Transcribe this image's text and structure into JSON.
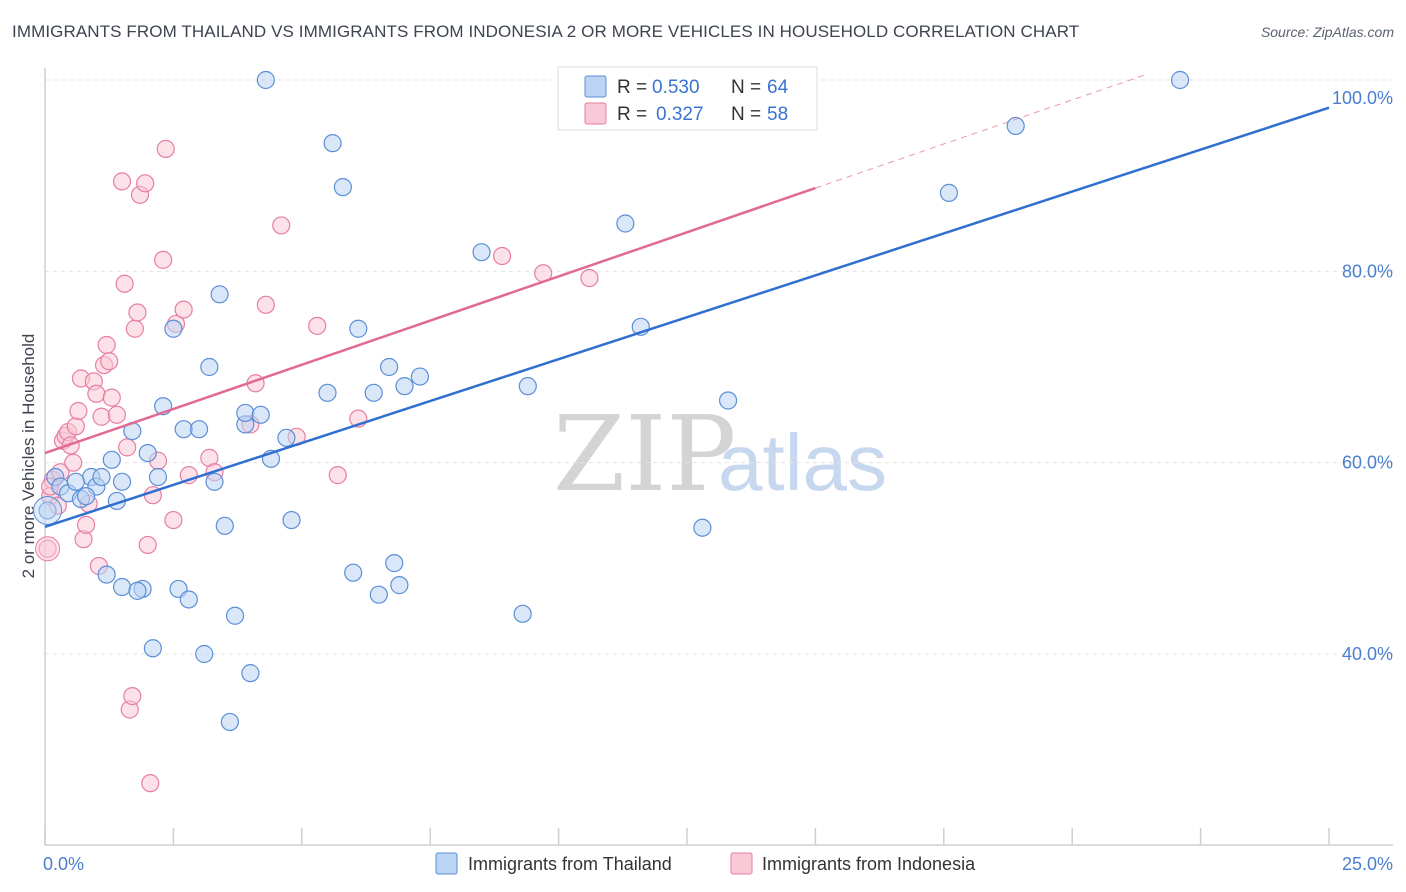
{
  "header": {
    "title": "IMMIGRANTS FROM THAILAND VS IMMIGRANTS FROM INDONESIA 2 OR MORE VEHICLES IN HOUSEHOLD CORRELATION CHART",
    "source": "Source: ZipAtlas.com"
  },
  "legend": {
    "r_label": "R =",
    "n_label": "N =",
    "series1": {
      "r": "0.530",
      "n": "64"
    },
    "series2": {
      "r": "0.327",
      "n": "58"
    }
  },
  "watermark": {
    "zip": "ZIP",
    "atlas": "atlas"
  },
  "colors": {
    "thailand_fill": "#bcd4f4",
    "thailand_stroke": "#5b8fd6",
    "thailand_line": "#2f6fd0",
    "indonesia_fill": "#f9c9d7",
    "indonesia_stroke": "#e77fa0",
    "indonesia_line": "#e06a93",
    "tick_text": "#4a7fd0"
  },
  "chart_data": {
    "type": "scatter",
    "title": "IMMIGRANTS FROM THAILAND VS IMMIGRANTS FROM INDONESIA 2 OR MORE VEHICLES IN HOUSEHOLD CORRELATION CHART",
    "xlabel": "",
    "ylabel": "2 or more Vehicles in Household",
    "xlim": [
      0,
      25
    ],
    "ylim": [
      20,
      102
    ],
    "x_tick_labels": [
      "0.0%",
      "25.0%"
    ],
    "y_ticks": [
      40,
      60,
      80,
      100
    ],
    "y_tick_labels": [
      "40.0%",
      "60.0%",
      "80.0%",
      "100.0%"
    ],
    "grid": true,
    "legend_position": "top-center",
    "series": [
      {
        "name": "Immigrants from Thailand",
        "r": 0.53,
        "n": 64,
        "trend": {
          "x": [
            0,
            25
          ],
          "y": [
            53.3,
            97.1
          ]
        },
        "points": [
          [
            0.05,
            55.0
          ],
          [
            0.2,
            58.5
          ],
          [
            0.3,
            57.5
          ],
          [
            0.45,
            56.8
          ],
          [
            0.7,
            56.2
          ],
          [
            0.9,
            58.5
          ],
          [
            1.0,
            57.5
          ],
          [
            1.1,
            58.5
          ],
          [
            1.3,
            60.3
          ],
          [
            1.4,
            56.0
          ],
          [
            1.5,
            58.0
          ],
          [
            1.7,
            63.3
          ],
          [
            2.0,
            61.0
          ],
          [
            2.2,
            58.5
          ],
          [
            2.3,
            65.9
          ],
          [
            2.5,
            74.0
          ],
          [
            2.7,
            63.5
          ],
          [
            3.0,
            63.5
          ],
          [
            3.2,
            70.0
          ],
          [
            3.3,
            58.0
          ],
          [
            3.4,
            77.6
          ],
          [
            3.5,
            53.4
          ],
          [
            3.9,
            64.0
          ],
          [
            3.9,
            65.2
          ],
          [
            4.2,
            65.0
          ],
          [
            4.4,
            60.4
          ],
          [
            4.7,
            62.6
          ],
          [
            4.8,
            54.0
          ],
          [
            5.5,
            67.3
          ],
          [
            5.6,
            93.4
          ],
          [
            5.8,
            88.8
          ],
          [
            6.0,
            48.5
          ],
          [
            6.1,
            74.0
          ],
          [
            6.4,
            67.3
          ],
          [
            6.5,
            46.2
          ],
          [
            6.7,
            70.0
          ],
          [
            6.8,
            49.5
          ],
          [
            6.9,
            47.2
          ],
          [
            7.0,
            68.0
          ],
          [
            7.3,
            69.0
          ],
          [
            8.5,
            82.0
          ],
          [
            9.3,
            44.2
          ],
          [
            9.4,
            68.0
          ],
          [
            11.3,
            85.0
          ],
          [
            11.6,
            74.2
          ],
          [
            12.8,
            53.2
          ],
          [
            13.3,
            66.5
          ],
          [
            17.6,
            88.2
          ],
          [
            18.9,
            95.2
          ],
          [
            22.1,
            100.0
          ],
          [
            4.3,
            100.0
          ],
          [
            1.5,
            47.0
          ],
          [
            1.2,
            48.3
          ],
          [
            1.9,
            46.8
          ],
          [
            1.8,
            46.6
          ],
          [
            2.1,
            40.6
          ],
          [
            2.6,
            46.8
          ],
          [
            2.8,
            45.7
          ],
          [
            3.1,
            40.0
          ],
          [
            3.7,
            44.0
          ],
          [
            4.0,
            38.0
          ],
          [
            3.6,
            32.9
          ],
          [
            0.8,
            56.5
          ],
          [
            0.6,
            58.0
          ]
        ]
      },
      {
        "name": "Immigrants from Indonesia",
        "r": 0.327,
        "n": 58,
        "trend": {
          "x": [
            0,
            15
          ],
          "y": [
            61.0,
            88.7
          ]
        },
        "trend_dashed": {
          "x": [
            15,
            21.4
          ],
          "y": [
            88.7,
            100.5
          ]
        },
        "points": [
          [
            0.05,
            51.0
          ],
          [
            0.1,
            56.5
          ],
          [
            0.15,
            58.2
          ],
          [
            0.25,
            55.5
          ],
          [
            0.3,
            59.0
          ],
          [
            0.35,
            62.3
          ],
          [
            0.4,
            62.8
          ],
          [
            0.45,
            63.2
          ],
          [
            0.5,
            61.8
          ],
          [
            0.55,
            60.0
          ],
          [
            0.6,
            63.8
          ],
          [
            0.65,
            65.4
          ],
          [
            0.7,
            68.8
          ],
          [
            0.75,
            52.0
          ],
          [
            0.8,
            53.5
          ],
          [
            0.85,
            55.7
          ],
          [
            0.95,
            68.5
          ],
          [
            1.0,
            67.2
          ],
          [
            1.05,
            49.2
          ],
          [
            1.1,
            64.8
          ],
          [
            1.15,
            70.2
          ],
          [
            1.2,
            72.3
          ],
          [
            1.25,
            70.6
          ],
          [
            1.3,
            66.8
          ],
          [
            1.4,
            65.0
          ],
          [
            1.5,
            89.4
          ],
          [
            1.55,
            78.7
          ],
          [
            1.6,
            61.6
          ],
          [
            1.65,
            34.2
          ],
          [
            1.7,
            35.6
          ],
          [
            1.75,
            74.0
          ],
          [
            1.8,
            75.7
          ],
          [
            1.85,
            88.0
          ],
          [
            1.95,
            89.2
          ],
          [
            2.0,
            51.4
          ],
          [
            2.05,
            26.5
          ],
          [
            2.1,
            56.6
          ],
          [
            2.2,
            60.2
          ],
          [
            2.3,
            81.2
          ],
          [
            2.35,
            92.8
          ],
          [
            2.5,
            54.0
          ],
          [
            2.55,
            74.5
          ],
          [
            2.7,
            76.0
          ],
          [
            2.8,
            58.7
          ],
          [
            3.2,
            60.5
          ],
          [
            3.3,
            59.0
          ],
          [
            4.0,
            64.0
          ],
          [
            4.1,
            68.3
          ],
          [
            4.3,
            76.5
          ],
          [
            4.6,
            84.8
          ],
          [
            4.9,
            62.7
          ],
          [
            5.3,
            74.3
          ],
          [
            5.7,
            58.7
          ],
          [
            6.1,
            64.6
          ],
          [
            8.9,
            81.6
          ],
          [
            9.7,
            79.8
          ],
          [
            10.6,
            79.3
          ],
          [
            0.1,
            57.5
          ]
        ]
      }
    ]
  },
  "bottom_legend": {
    "items": [
      {
        "label": "Immigrants from Thailand"
      },
      {
        "label": "Immigrants from Indonesia"
      }
    ]
  }
}
